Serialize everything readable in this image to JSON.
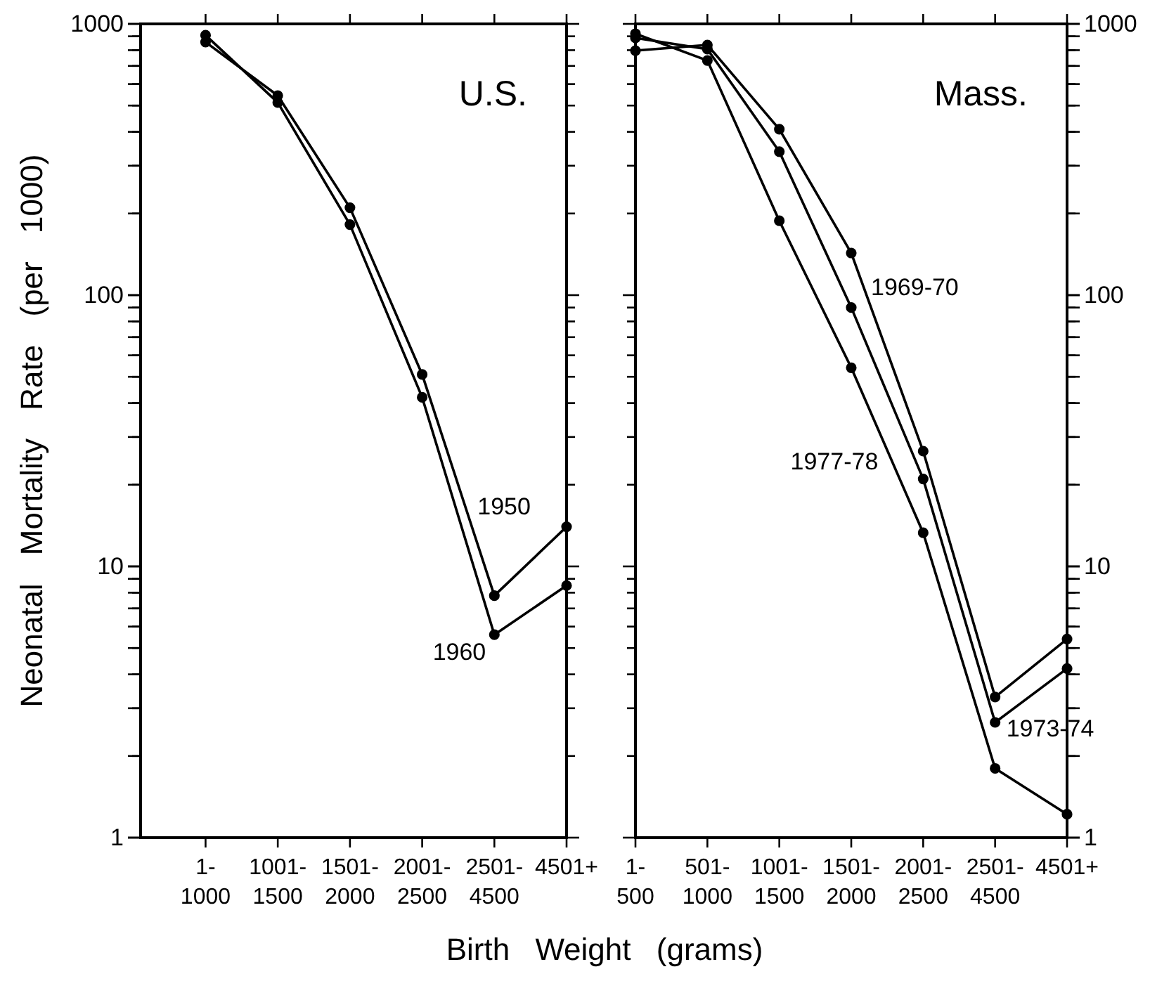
{
  "chart_data": [
    {
      "type": "line",
      "title": "U.S.",
      "ylabel": "Neonatal Mortality Rate (per 1000)",
      "xlabel": "Birth Weight (grams)",
      "categories": [
        "1-\n1000",
        "1001-\n1500",
        "1501-\n2000",
        "2001-\n2500",
        "2501-\n4500",
        "4501+"
      ],
      "log": true,
      "ylim": [
        1,
        1000
      ],
      "yticks": [
        1,
        {
          "value": 2,
          "label": null
        },
        {
          "value": 3,
          "label": null
        },
        {
          "value": 4,
          "label": null
        },
        {
          "value": 5,
          "label": null
        },
        {
          "value": 6,
          "label": null
        },
        {
          "value": 7,
          "label": null
        },
        {
          "value": 8,
          "label": null
        },
        {
          "value": 9,
          "label": null
        },
        10,
        {
          "value": 20,
          "label": null
        },
        {
          "value": 30,
          "label": null
        },
        {
          "value": 40,
          "label": null
        },
        {
          "value": 50,
          "label": null
        },
        {
          "value": 60,
          "label": null
        },
        {
          "value": 70,
          "label": null
        },
        {
          "value": 80,
          "label": null
        },
        {
          "value": 90,
          "label": null
        },
        100,
        {
          "value": 200,
          "label": null
        },
        {
          "value": 300,
          "label": null
        },
        {
          "value": 400,
          "label": null
        },
        {
          "value": 500,
          "label": null
        },
        {
          "value": 600,
          "label": null
        },
        {
          "value": 700,
          "label": null
        },
        {
          "value": 800,
          "label": null
        },
        {
          "value": 900,
          "label": null
        },
        1000
      ],
      "marker": "circle",
      "grid": false,
      "series": [
        {
          "name": "1950",
          "color": "#000000",
          "values": [
            857,
            544,
            210,
            51,
            7.8,
            14
          ]
        },
        {
          "name": "1960",
          "color": "#000000",
          "values": [
            908,
            513,
            182,
            42,
            5.6,
            8.5
          ]
        }
      ]
    },
    {
      "type": "line",
      "title": "Mass.",
      "categories": [
        "1-\n500",
        "501-\n1000",
        "1001-\n1500",
        "1501-\n2000",
        "2001-\n2500",
        "2501-\n4500",
        "4501+"
      ],
      "log": true,
      "ylim": [
        1,
        1000
      ],
      "yticks": [
        1,
        {
          "value": 2,
          "label": null
        },
        {
          "value": 3,
          "label": null
        },
        {
          "value": 4,
          "label": null
        },
        {
          "value": 5,
          "label": null
        },
        {
          "value": 6,
          "label": null
        },
        {
          "value": 7,
          "label": null
        },
        {
          "value": 8,
          "label": null
        },
        {
          "value": 9,
          "label": null
        },
        10,
        {
          "value": 20,
          "label": null
        },
        {
          "value": 30,
          "label": null
        },
        {
          "value": 40,
          "label": null
        },
        {
          "value": 50,
          "label": null
        },
        {
          "value": 60,
          "label": null
        },
        {
          "value": 70,
          "label": null
        },
        {
          "value": 80,
          "label": null
        },
        {
          "value": 90,
          "label": null
        },
        100,
        {
          "value": 200,
          "label": null
        },
        {
          "value": 300,
          "label": null
        },
        {
          "value": 400,
          "label": null
        },
        {
          "value": 500,
          "label": null
        },
        {
          "value": 600,
          "label": null
        },
        {
          "value": 700,
          "label": null
        },
        {
          "value": 800,
          "label": null
        },
        {
          "value": 900,
          "label": null
        },
        1000
      ],
      "marker": "circle",
      "grid": false,
      "series": [
        {
          "name": "1969-70",
          "color": "#000000",
          "values": [
            797,
            836,
            409,
            143,
            26.6,
            3.3,
            5.4
          ]
        },
        {
          "name": "1973-74",
          "color": "#000000",
          "values": [
            888,
            807,
            338,
            90,
            21,
            2.66,
            4.2
          ]
        },
        {
          "name": "1977-78",
          "color": "#000000",
          "values": [
            920,
            733,
            188,
            54,
            13.3,
            1.8,
            1.22
          ]
        }
      ]
    }
  ]
}
